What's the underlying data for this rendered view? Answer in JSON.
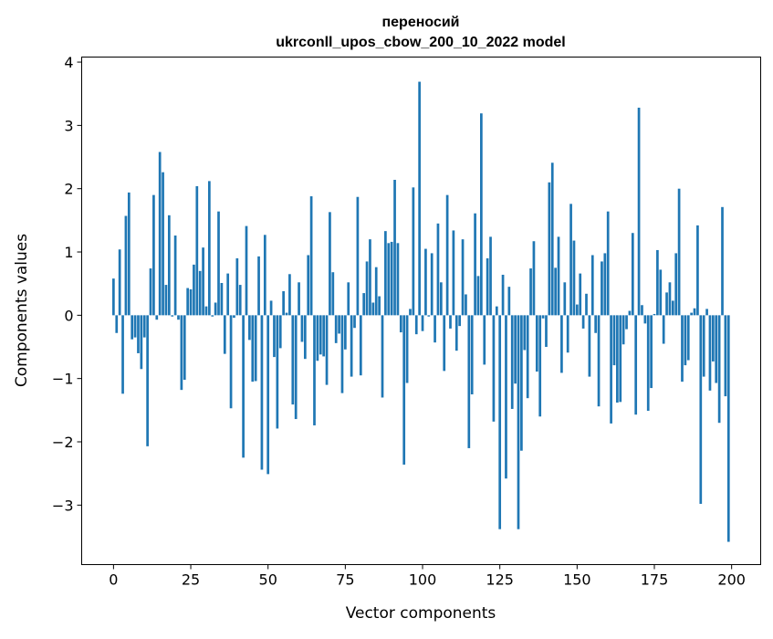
{
  "chart_data": {
    "type": "bar",
    "title_line1": "переносий",
    "title_line2": "ukrconll_upos_cbow_200_10_2022 model",
    "xlabel": "Vector components",
    "ylabel": "Components values",
    "xlim": [
      -10.3,
      209.4
    ],
    "ylim": [
      -3.94,
      4.08
    ],
    "xticks": [
      0,
      25,
      50,
      75,
      100,
      125,
      150,
      175,
      200
    ],
    "yticks": [
      -3,
      -2,
      -1,
      0,
      1,
      2,
      3,
      4
    ],
    "ytick_labels": [
      "−3",
      "−2",
      "−1",
      "0",
      "1",
      "2",
      "3",
      "4"
    ],
    "bar_color": "#1f77b4",
    "grid": false,
    "values": [
      0.58,
      -0.28,
      1.04,
      -1.24,
      1.57,
      1.94,
      -0.38,
      -0.35,
      -0.6,
      -0.85,
      -0.35,
      -2.07,
      0.74,
      1.9,
      -0.07,
      2.58,
      2.26,
      0.48,
      1.58,
      -0.02,
      1.26,
      -0.07,
      -1.18,
      -1.02,
      0.43,
      0.41,
      0.8,
      2.04,
      0.7,
      1.07,
      0.14,
      2.12,
      -0.02,
      0.2,
      1.64,
      0.51,
      -0.61,
      0.66,
      -1.47,
      -0.04,
      0.9,
      0.48,
      -2.25,
      1.41,
      -0.39,
      -1.05,
      -1.04,
      0.93,
      -2.44,
      1.27,
      -2.51,
      0.23,
      -0.66,
      -1.79,
      -0.52,
      0.38,
      0.04,
      0.65,
      -1.41,
      -1.64,
      0.52,
      -0.42,
      -0.69,
      0.95,
      1.88,
      -1.74,
      -0.72,
      -0.62,
      -0.65,
      -1.1,
      1.63,
      0.68,
      -0.44,
      -0.29,
      -1.23,
      -0.54,
      0.52,
      -0.97,
      -0.2,
      1.87,
      -0.95,
      0.35,
      0.85,
      1.2,
      0.2,
      0.76,
      0.3,
      -1.3,
      1.33,
      1.14,
      1.16,
      2.14,
      1.14,
      -0.27,
      -2.36,
      -1.07,
      0.1,
      2.02,
      -0.3,
      3.69,
      -0.25,
      1.05,
      -0.02,
      0.98,
      -0.43,
      1.45,
      0.52,
      -0.88,
      1.9,
      -0.21,
      1.34,
      -0.56,
      -0.17,
      1.2,
      0.33,
      -2.1,
      -1.25,
      1.61,
      0.62,
      3.19,
      -0.78,
      0.9,
      1.24,
      -1.68,
      0.14,
      -3.38,
      0.64,
      -2.58,
      0.45,
      -1.48,
      -1.08,
      -3.38,
      -2.14,
      -0.55,
      -1.31,
      0.74,
      1.17,
      -0.89,
      -1.6,
      -0.05,
      -0.5,
      2.1,
      2.41,
      0.75,
      1.24,
      -0.91,
      0.52,
      -0.59,
      1.76,
      1.18,
      0.17,
      0.66,
      -0.21,
      0.34,
      -0.97,
      0.95,
      -0.28,
      -1.44,
      0.85,
      0.98,
      1.64,
      -1.71,
      -0.79,
      -1.38,
      -1.37,
      -0.46,
      -0.22,
      0.07,
      1.3,
      -1.57,
      3.28,
      0.16,
      -0.13,
      -1.51,
      -1.15,
      0.02,
      1.03,
      0.72,
      -0.45,
      0.36,
      0.52,
      0.23,
      0.98,
      2.0,
      -1.05,
      -0.79,
      -0.71,
      0.04,
      0.11,
      1.42,
      -2.98,
      -0.97,
      0.1,
      -1.19,
      -0.73,
      -1.07,
      -1.7,
      1.71,
      -1.28,
      -3.58
    ]
  }
}
